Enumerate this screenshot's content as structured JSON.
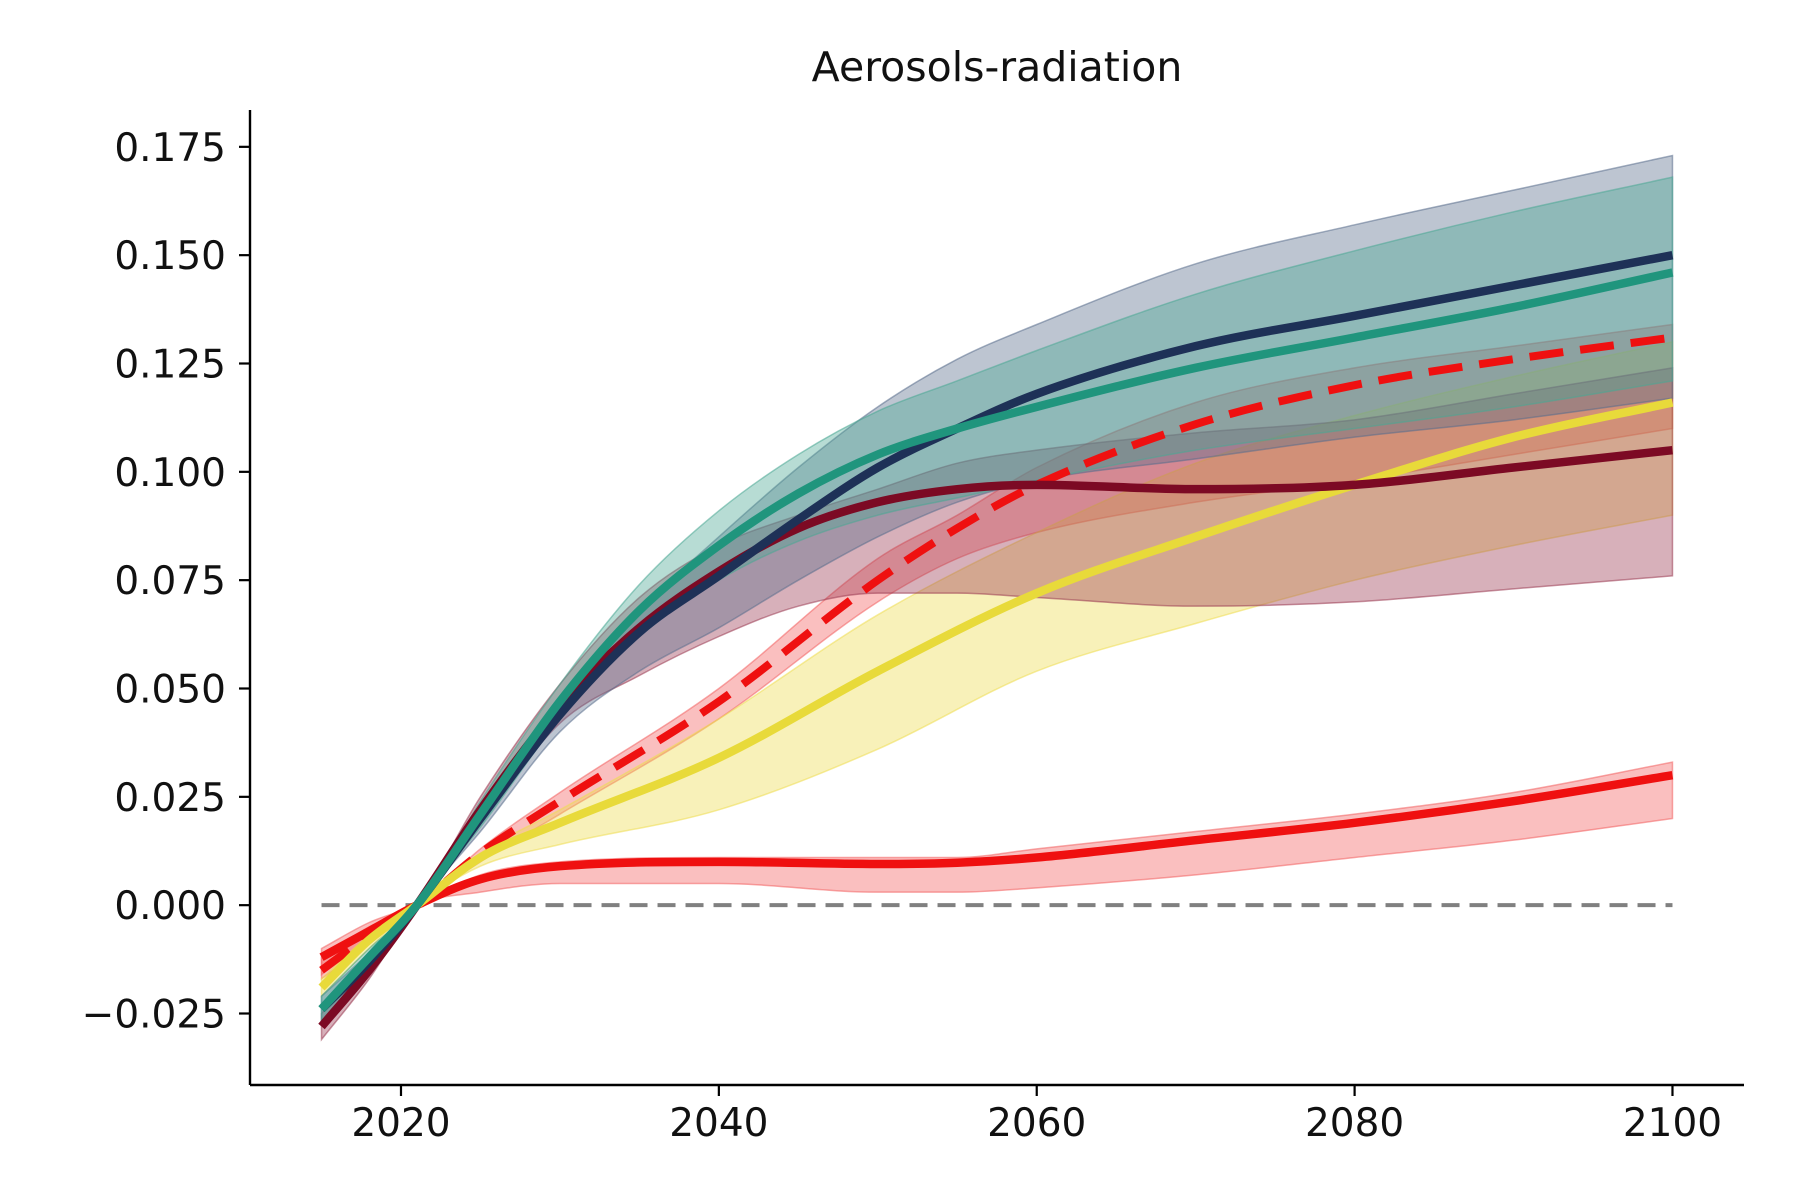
{
  "chart_data": {
    "type": "line",
    "title": "Aerosols-radiation",
    "xlabel": "",
    "ylabel": "",
    "xlim": [
      2010.5,
      2104.5
    ],
    "ylim": [
      -0.0415,
      0.1835
    ],
    "xticks": [
      2020,
      2040,
      2060,
      2080,
      2100
    ],
    "xtick_labels": [
      "2020",
      "2040",
      "2060",
      "2080",
      "2100"
    ],
    "yticks": [
      -0.025,
      0,
      0.025,
      0.05,
      0.075,
      0.1,
      0.125,
      0.15,
      0.175
    ],
    "ytick_labels": [
      "−0.025",
      "0.000",
      "0.025",
      "0.050",
      "0.075",
      "0.100",
      "0.125",
      "0.150",
      "0.175"
    ],
    "grid": false,
    "legend": null,
    "reference_line": {
      "y": 0,
      "x_start": 2015,
      "x_end": 2100,
      "style": "dashed",
      "color": "#808080"
    },
    "series": [
      {
        "color": "#ef1010",
        "band_color": "#f26060",
        "style": "solid",
        "x": [
          2015,
          2018,
          2021,
          2025,
          2030,
          2040,
          2050,
          2055,
          2060,
          2070,
          2080,
          2090,
          2100
        ],
        "y": [
          -0.012,
          -0.006,
          0.0,
          0.006,
          0.009,
          0.01,
          0.0095,
          0.0098,
          0.011,
          0.015,
          0.019,
          0.024,
          0.03
        ],
        "lower": [
          -0.016,
          -0.008,
          0.0,
          0.003,
          0.005,
          0.005,
          0.003,
          0.003,
          0.004,
          0.007,
          0.011,
          0.015,
          0.02
        ],
        "upper": [
          -0.01,
          -0.004,
          0.0,
          0.007,
          0.01,
          0.011,
          0.011,
          0.011,
          0.013,
          0.017,
          0.021,
          0.026,
          0.033
        ]
      },
      {
        "color": "#ef1010",
        "band_color": "#f26060",
        "style": "dashed",
        "x": [
          2015,
          2018,
          2021,
          2025,
          2030,
          2040,
          2050,
          2055,
          2060,
          2070,
          2080,
          2090,
          2100
        ],
        "y": [
          -0.015,
          -0.007,
          0.0,
          0.012,
          0.024,
          0.047,
          0.075,
          0.087,
          0.097,
          0.111,
          0.12,
          0.126,
          0.131
        ],
        "lower": [
          -0.017,
          -0.009,
          0.0,
          0.01,
          0.021,
          0.043,
          0.07,
          0.08,
          0.086,
          0.093,
          0.098,
          0.104,
          0.11
        ],
        "upper": [
          -0.012,
          -0.005,
          0.0,
          0.013,
          0.026,
          0.05,
          0.08,
          0.09,
          0.101,
          0.116,
          0.124,
          0.129,
          0.134
        ]
      },
      {
        "color": "#e8da3a",
        "band_color": "#eedc50",
        "style": "solid",
        "x": [
          2015,
          2018,
          2021,
          2025,
          2030,
          2040,
          2050,
          2060,
          2070,
          2080,
          2090,
          2100
        ],
        "y": [
          -0.019,
          -0.008,
          0.0,
          0.011,
          0.019,
          0.034,
          0.054,
          0.072,
          0.085,
          0.097,
          0.108,
          0.116
        ],
        "lower": [
          -0.021,
          -0.01,
          0.0,
          0.009,
          0.014,
          0.022,
          0.036,
          0.054,
          0.065,
          0.075,
          0.083,
          0.09
        ],
        "upper": [
          -0.017,
          -0.007,
          0.0,
          0.012,
          0.022,
          0.043,
          0.067,
          0.086,
          0.102,
          0.113,
          0.122,
          0.13
        ]
      },
      {
        "color": "#7c0a24",
        "band_color": "#9a3a52",
        "style": "solid",
        "x": [
          2015,
          2018,
          2021,
          2025,
          2030,
          2035,
          2040,
          2045,
          2050,
          2055,
          2060,
          2070,
          2080,
          2090,
          2100
        ],
        "y": [
          -0.028,
          -0.015,
          0.0,
          0.022,
          0.046,
          0.064,
          0.077,
          0.087,
          0.093,
          0.096,
          0.097,
          0.096,
          0.097,
          0.101,
          0.105
        ],
        "lower": [
          -0.031,
          -0.017,
          0.0,
          0.019,
          0.042,
          0.053,
          0.062,
          0.069,
          0.072,
          0.072,
          0.071,
          0.069,
          0.07,
          0.073,
          0.076
        ],
        "upper": [
          -0.025,
          -0.013,
          0.0,
          0.025,
          0.051,
          0.071,
          0.083,
          0.09,
          0.096,
          0.102,
          0.105,
          0.109,
          0.112,
          0.118,
          0.124
        ]
      },
      {
        "color": "#1e3157",
        "band_color": "#5a6e8c",
        "style": "solid",
        "x": [
          2015,
          2018,
          2021,
          2025,
          2030,
          2035,
          2040,
          2045,
          2050,
          2055,
          2060,
          2070,
          2080,
          2090,
          2100
        ],
        "y": [
          -0.024,
          -0.013,
          0.0,
          0.02,
          0.044,
          0.063,
          0.076,
          0.089,
          0.101,
          0.11,
          0.118,
          0.129,
          0.136,
          0.143,
          0.15
        ],
        "lower": [
          -0.027,
          -0.015,
          0.0,
          0.017,
          0.04,
          0.054,
          0.064,
          0.075,
          0.085,
          0.093,
          0.098,
          0.103,
          0.108,
          0.112,
          0.117
        ],
        "upper": [
          -0.021,
          -0.011,
          0.0,
          0.023,
          0.047,
          0.068,
          0.085,
          0.101,
          0.115,
          0.126,
          0.134,
          0.148,
          0.157,
          0.165,
          0.173
        ]
      },
      {
        "color": "#20957d",
        "band_color": "#4aa894",
        "style": "solid",
        "x": [
          2015,
          2018,
          2021,
          2025,
          2030,
          2035,
          2040,
          2045,
          2050,
          2055,
          2060,
          2070,
          2080,
          2090,
          2100
        ],
        "y": [
          -0.024,
          -0.012,
          0.0,
          0.021,
          0.047,
          0.068,
          0.083,
          0.095,
          0.104,
          0.11,
          0.115,
          0.124,
          0.131,
          0.138,
          0.146
        ],
        "lower": [
          -0.027,
          -0.014,
          0.0,
          0.018,
          0.043,
          0.062,
          0.075,
          0.084,
          0.09,
          0.094,
          0.098,
          0.105,
          0.11,
          0.115,
          0.121
        ],
        "upper": [
          -0.021,
          -0.01,
          0.0,
          0.024,
          0.051,
          0.074,
          0.091,
          0.104,
          0.114,
          0.121,
          0.128,
          0.141,
          0.151,
          0.16,
          0.168
        ]
      }
    ]
  }
}
